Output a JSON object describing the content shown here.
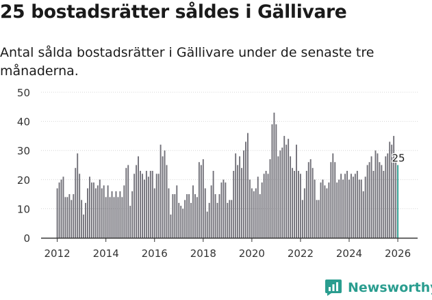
{
  "headline": "25 bostadsrätter såldes i Gällivare",
  "subtitle": "Antal sålda bostadsrätter i Gällivare under de senaste tre månaderna.",
  "brand": {
    "name": "Newsworthy",
    "icon": "newsworthy-logo-icon",
    "color": "#2a9d8f"
  },
  "colors": {
    "bar": "#717078",
    "highlight": "#2a9d8f",
    "axis": "#333333",
    "grid": "#d4d4d4"
  },
  "chart_data": {
    "type": "bar",
    "title": "25 bostadsrätter såldes i Gällivare",
    "xlabel": "",
    "ylabel": "",
    "ylim": [
      0,
      50
    ],
    "yticks": [
      0,
      10,
      20,
      30,
      40,
      50
    ],
    "xticks": [
      "2012",
      "2014",
      "2016",
      "2018",
      "2020",
      "2022",
      "2024",
      "2026"
    ],
    "start": "2012-01",
    "values": [
      17,
      19,
      20,
      21,
      14,
      14,
      15,
      13,
      15,
      24,
      29,
      22,
      13,
      8,
      12,
      17,
      21,
      19,
      19,
      17,
      18,
      20,
      17,
      18,
      14,
      18,
      14,
      16,
      14,
      16,
      14,
      16,
      14,
      18,
      24,
      25,
      11,
      16,
      22,
      25,
      28,
      23,
      22,
      20,
      23,
      21,
      23,
      23,
      17,
      22,
      22,
      32,
      28,
      30,
      25,
      17,
      8,
      15,
      15,
      18,
      12,
      11,
      10,
      13,
      15,
      15,
      12,
      18,
      15,
      14,
      26,
      25,
      27,
      17,
      9,
      12,
      18,
      23,
      15,
      12,
      15,
      19,
      20,
      19,
      12,
      13,
      13,
      23,
      29,
      25,
      28,
      24,
      30,
      33,
      36,
      20,
      17,
      16,
      17,
      21,
      15,
      19,
      22,
      23,
      22,
      27,
      39,
      43,
      39,
      28,
      30,
      31,
      35,
      32,
      34,
      28,
      24,
      23,
      32,
      23,
      22,
      13,
      17,
      23,
      26,
      27,
      24,
      20,
      13,
      13,
      19,
      20,
      18,
      17,
      19,
      26,
      29,
      26,
      19,
      20,
      22,
      20,
      22,
      23,
      20,
      22,
      21,
      22,
      23,
      20,
      20,
      16,
      21,
      25,
      26,
      28,
      23,
      30,
      29,
      26,
      25,
      23,
      28,
      29,
      33,
      32,
      35,
      28,
      25
    ],
    "highlight_label": "25"
  }
}
